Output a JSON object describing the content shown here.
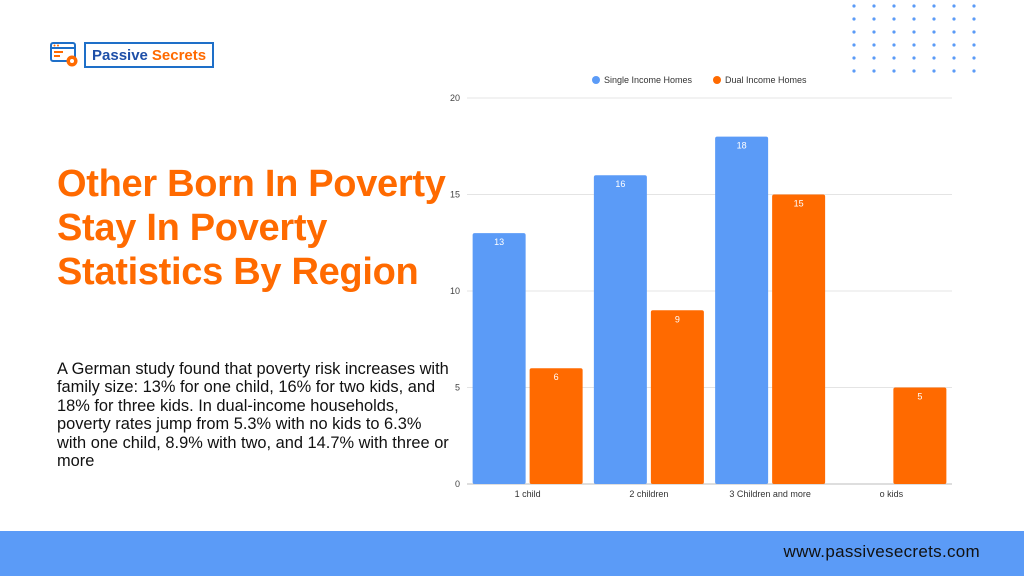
{
  "brand": {
    "logo_text_main": "Passive",
    "logo_text_accent": "Secrets",
    "logo_icon": "browser-gear-icon",
    "colors": {
      "orange": "#ff6a00",
      "blue": "#5b9bf7",
      "dark_blue": "#1e4fa8"
    }
  },
  "headline": "Other Born In Poverty Stay In Poverty Statistics By Region",
  "description": "A German study found that poverty risk increases with family size: 13% for one child, 16% for two kids, and 18% for three kids. In dual-income households, poverty rates jump from 5.3% with no kids to 6.3% with one child, 8.9% with two, and 14.7% with three or more",
  "footer": {
    "url": "www.passivesecrets.com"
  },
  "chart_data": {
    "type": "bar",
    "categories": [
      "1 child",
      "2 children",
      "3 Children and more",
      "o kids"
    ],
    "series": [
      {
        "name": "Single Income Homes",
        "color": "#5b9bf7",
        "values": [
          13,
          16,
          18,
          null
        ]
      },
      {
        "name": "Dual Income Homes",
        "color": "#ff6a00",
        "values": [
          6,
          9,
          15,
          5
        ]
      }
    ],
    "yticks": [
      0,
      5,
      10,
      15,
      20
    ],
    "ylim": [
      0,
      20
    ],
    "grid": true,
    "legend_position": "top",
    "data_labels": true
  }
}
